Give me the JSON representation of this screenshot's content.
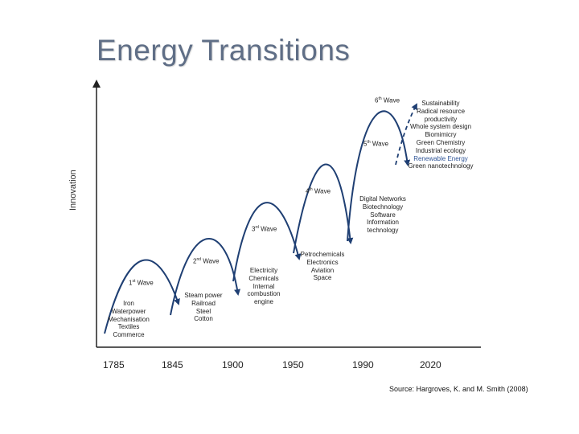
{
  "title": "Energy Transitions",
  "y_axis_label": "Innovation",
  "x_ticks": [
    "1785",
    "1845",
    "1900",
    "1950",
    "1990",
    "2020"
  ],
  "waves": [
    {
      "label": "1",
      "suffix": "st",
      "word": "Wave",
      "items": [
        "Iron",
        "Waterpower",
        "Mechanisation",
        "Textiles",
        "Commerce"
      ]
    },
    {
      "label": "2",
      "suffix": "nd",
      "word": "Wave",
      "items": [
        "Steam power",
        "Railroad",
        "Steel",
        "Cotton"
      ]
    },
    {
      "label": "3",
      "suffix": "rd",
      "word": "Wave",
      "items": [
        "Electricity",
        "Chemicals",
        "Internal",
        "combustion",
        "engine"
      ]
    },
    {
      "label": "4",
      "suffix": "th",
      "word": "Wave",
      "items": [
        "Petrochemicals",
        "Electronics",
        "Aviation",
        "Space"
      ]
    },
    {
      "label": "5",
      "suffix": "th",
      "word": "Wave",
      "items": [
        "Digital Networks",
        "Biotechnology",
        "Software",
        "Information",
        "technology"
      ]
    },
    {
      "label": "6",
      "suffix": "th",
      "word": "Wave",
      "items": [
        "Sustainability",
        "Radical resource",
        "productivity",
        "Whole system design",
        "Biomimicry",
        "Green Chemistry",
        "Industrial ecology",
        "Renewable Energy",
        "Green nanotechnology"
      ]
    }
  ],
  "source": "Source: Hargroves, K. and M. Smith (2008)",
  "colors": {
    "title": "#5f6e86",
    "curve": "#1f3f73",
    "highlight": "#2f5597",
    "axis": "#222222"
  }
}
